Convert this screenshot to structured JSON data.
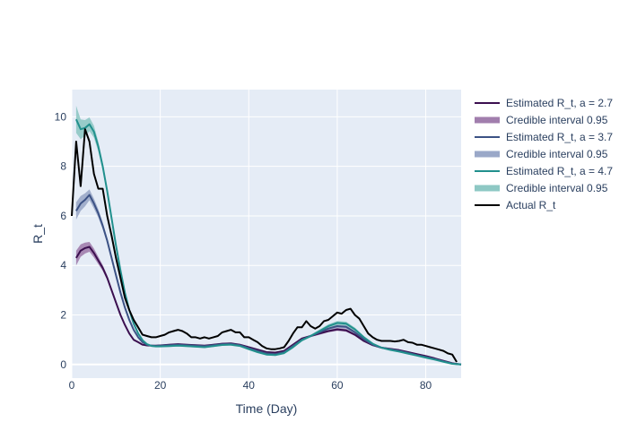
{
  "chart_data": {
    "type": "line",
    "title": "",
    "xlabel": "Time (Day)",
    "ylabel": "R_t",
    "xlim": [
      0,
      88
    ],
    "ylim": [
      -0.55,
      11.1
    ],
    "x_ticks": [
      0,
      20,
      40,
      60,
      80
    ],
    "y_ticks": [
      0,
      2,
      4,
      6,
      8,
      10
    ],
    "grid": true,
    "legend_position": "top-right",
    "legend": [
      "Estimated R_t, a = 2.7",
      "Credible interval 0.95",
      "Estimated R_t, a = 3.7",
      "Credible interval 0.95",
      "Estimated R_t, a = 4.7",
      "Credible interval 0.95",
      "Actual R_t"
    ],
    "series": [
      {
        "name": "Estimated R_t, a = 2.7",
        "color": "#3b0f4f",
        "band_name": "Credible interval 0.95",
        "band_color": "#a17ead",
        "x": [
          1,
          2,
          3,
          4,
          5,
          6,
          7,
          8,
          9,
          10,
          11,
          12,
          13,
          14,
          15,
          16,
          17,
          18,
          19,
          20,
          22,
          24,
          26,
          28,
          30,
          32,
          34,
          36,
          38,
          40,
          42,
          44,
          46,
          48,
          50,
          52,
          54,
          56,
          58,
          60,
          62,
          64,
          66,
          68,
          70,
          72,
          74,
          76,
          78,
          80,
          82,
          84,
          86,
          88
        ],
        "y": [
          4.3,
          4.6,
          4.7,
          4.75,
          4.5,
          4.2,
          3.9,
          3.5,
          3.0,
          2.5,
          2.0,
          1.6,
          1.25,
          1.0,
          0.9,
          0.8,
          0.77,
          0.76,
          0.76,
          0.77,
          0.8,
          0.82,
          0.8,
          0.78,
          0.76,
          0.8,
          0.84,
          0.85,
          0.8,
          0.7,
          0.6,
          0.5,
          0.48,
          0.55,
          0.8,
          1.05,
          1.15,
          1.25,
          1.35,
          1.42,
          1.38,
          1.2,
          0.95,
          0.78,
          0.68,
          0.63,
          0.58,
          0.5,
          0.42,
          0.34,
          0.25,
          0.15,
          0.05,
          0.0
        ],
        "band_half_width": [
          0.3,
          0.25,
          0.22,
          0.2,
          0.18,
          0.15,
          0.12,
          0.1,
          0.08,
          0.07,
          0.06,
          0.05,
          0.04,
          0.04,
          0.03,
          0.03,
          0.03,
          0.03,
          0.03,
          0.03,
          0.03,
          0.03,
          0.03,
          0.03,
          0.03,
          0.03,
          0.03,
          0.03,
          0.03,
          0.03,
          0.03,
          0.03,
          0.03,
          0.03,
          0.03,
          0.04,
          0.04,
          0.05,
          0.05,
          0.06,
          0.06,
          0.05,
          0.04,
          0.03,
          0.03,
          0.03,
          0.03,
          0.03,
          0.03,
          0.03,
          0.02,
          0.02,
          0.02,
          0.01
        ]
      },
      {
        "name": "Estimated R_t, a = 3.7",
        "color": "#3c5285",
        "band_name": "Credible interval 0.95",
        "band_color": "#9aa8c8",
        "x": [
          1,
          2,
          3,
          4,
          5,
          6,
          7,
          8,
          9,
          10,
          11,
          12,
          13,
          14,
          15,
          16,
          17,
          18,
          19,
          20,
          22,
          24,
          26,
          28,
          30,
          32,
          34,
          36,
          38,
          40,
          42,
          44,
          46,
          48,
          50,
          52,
          54,
          56,
          58,
          60,
          62,
          64,
          66,
          68,
          70,
          72,
          74,
          76,
          78,
          80,
          82,
          84,
          86,
          88
        ],
        "y": [
          6.2,
          6.5,
          6.65,
          6.85,
          6.5,
          6.1,
          5.6,
          5.0,
          4.3,
          3.6,
          2.9,
          2.3,
          1.8,
          1.4,
          1.1,
          0.9,
          0.8,
          0.76,
          0.75,
          0.76,
          0.78,
          0.8,
          0.78,
          0.76,
          0.74,
          0.78,
          0.82,
          0.83,
          0.78,
          0.66,
          0.55,
          0.45,
          0.42,
          0.5,
          0.75,
          1.0,
          1.15,
          1.3,
          1.45,
          1.55,
          1.52,
          1.3,
          1.02,
          0.8,
          0.68,
          0.61,
          0.55,
          0.47,
          0.38,
          0.3,
          0.22,
          0.13,
          0.04,
          0.0
        ],
        "band_half_width": [
          0.35,
          0.3,
          0.26,
          0.22,
          0.2,
          0.17,
          0.14,
          0.11,
          0.09,
          0.08,
          0.07,
          0.06,
          0.05,
          0.04,
          0.04,
          0.03,
          0.03,
          0.03,
          0.03,
          0.03,
          0.03,
          0.03,
          0.03,
          0.03,
          0.03,
          0.03,
          0.03,
          0.03,
          0.03,
          0.03,
          0.03,
          0.03,
          0.03,
          0.03,
          0.04,
          0.04,
          0.05,
          0.05,
          0.06,
          0.07,
          0.07,
          0.06,
          0.05,
          0.04,
          0.03,
          0.03,
          0.03,
          0.03,
          0.03,
          0.03,
          0.02,
          0.02,
          0.02,
          0.01
        ]
      },
      {
        "name": "Estimated R_t, a = 4.7",
        "color": "#21908d",
        "band_name": "Credible interval 0.95",
        "band_color": "#8ec8c4",
        "x": [
          1,
          2,
          3,
          4,
          5,
          6,
          7,
          8,
          9,
          10,
          11,
          12,
          13,
          14,
          15,
          16,
          17,
          18,
          19,
          20,
          22,
          24,
          26,
          28,
          30,
          32,
          34,
          36,
          38,
          40,
          42,
          44,
          46,
          48,
          50,
          52,
          54,
          56,
          58,
          60,
          62,
          64,
          66,
          68,
          70,
          72,
          74,
          76,
          78,
          80,
          82,
          84,
          86,
          88
        ],
        "y": [
          9.9,
          9.5,
          9.55,
          9.7,
          9.4,
          8.8,
          8.0,
          7.0,
          5.9,
          4.8,
          3.8,
          2.9,
          2.2,
          1.65,
          1.25,
          0.98,
          0.82,
          0.75,
          0.73,
          0.73,
          0.74,
          0.76,
          0.74,
          0.72,
          0.7,
          0.74,
          0.79,
          0.8,
          0.75,
          0.62,
          0.5,
          0.4,
          0.38,
          0.46,
          0.7,
          0.98,
          1.15,
          1.35,
          1.55,
          1.68,
          1.65,
          1.42,
          1.1,
          0.84,
          0.68,
          0.59,
          0.52,
          0.44,
          0.36,
          0.28,
          0.2,
          0.11,
          0.03,
          0.0
        ],
        "band_half_width": [
          0.55,
          0.4,
          0.32,
          0.28,
          0.24,
          0.2,
          0.16,
          0.13,
          0.1,
          0.09,
          0.08,
          0.07,
          0.06,
          0.05,
          0.04,
          0.04,
          0.03,
          0.03,
          0.03,
          0.03,
          0.03,
          0.03,
          0.03,
          0.03,
          0.03,
          0.03,
          0.03,
          0.03,
          0.03,
          0.03,
          0.03,
          0.03,
          0.03,
          0.03,
          0.04,
          0.05,
          0.05,
          0.06,
          0.07,
          0.08,
          0.08,
          0.07,
          0.05,
          0.04,
          0.03,
          0.03,
          0.03,
          0.03,
          0.03,
          0.03,
          0.02,
          0.02,
          0.02,
          0.01
        ]
      },
      {
        "name": "Actual R_t",
        "color": "#000000",
        "x": [
          0,
          1,
          2,
          3,
          4,
          5,
          6,
          7,
          8,
          9,
          10,
          11,
          12,
          13,
          14,
          15,
          16,
          17,
          18,
          19,
          20,
          21,
          22,
          23,
          24,
          25,
          26,
          27,
          28,
          29,
          30,
          31,
          32,
          33,
          34,
          35,
          36,
          37,
          38,
          39,
          40,
          41,
          42,
          43,
          44,
          45,
          46,
          47,
          48,
          49,
          50,
          51,
          52,
          53,
          54,
          55,
          56,
          57,
          58,
          59,
          60,
          61,
          62,
          63,
          64,
          65,
          66,
          67,
          68,
          69,
          70,
          71,
          72,
          73,
          74,
          75,
          76,
          77,
          78,
          79,
          80,
          81,
          82,
          83,
          84,
          85,
          86,
          87
        ],
        "y": [
          6.0,
          9.0,
          7.2,
          9.5,
          9.0,
          7.7,
          7.1,
          7.1,
          6.0,
          5.2,
          4.3,
          3.5,
          2.7,
          2.2,
          1.8,
          1.5,
          1.2,
          1.15,
          1.1,
          1.1,
          1.15,
          1.2,
          1.3,
          1.35,
          1.4,
          1.35,
          1.25,
          1.1,
          1.1,
          1.05,
          1.1,
          1.05,
          1.1,
          1.15,
          1.3,
          1.35,
          1.4,
          1.3,
          1.3,
          1.1,
          1.1,
          1.0,
          0.9,
          0.75,
          0.65,
          0.62,
          0.62,
          0.65,
          0.7,
          0.95,
          1.25,
          1.5,
          1.5,
          1.75,
          1.55,
          1.45,
          1.55,
          1.75,
          1.8,
          1.95,
          2.1,
          2.05,
          2.2,
          2.25,
          2.0,
          1.85,
          1.55,
          1.25,
          1.1,
          1.0,
          0.95,
          0.95,
          0.95,
          0.93,
          0.95,
          1.0,
          0.9,
          0.88,
          0.8,
          0.8,
          0.75,
          0.7,
          0.65,
          0.6,
          0.55,
          0.45,
          0.4,
          0.1
        ]
      }
    ]
  }
}
